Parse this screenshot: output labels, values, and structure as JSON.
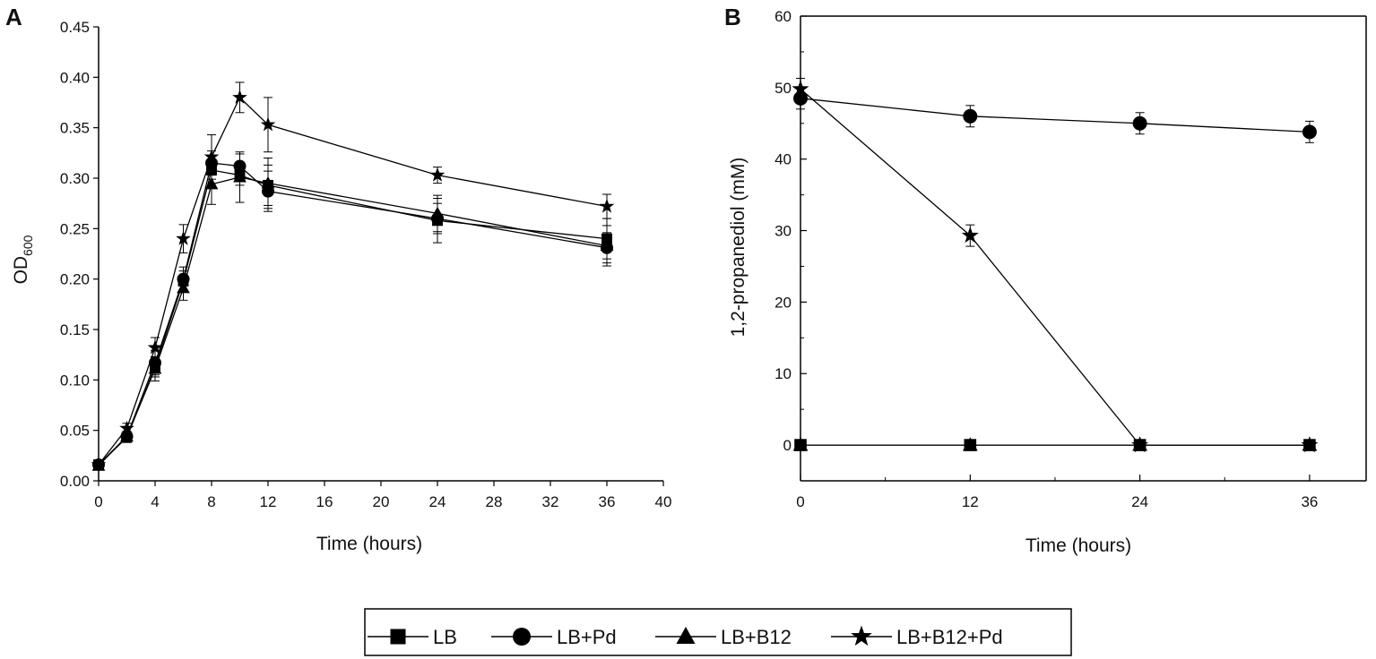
{
  "legend": [
    "LB",
    "LB+Pd",
    "LB+B12",
    "LB+B12+Pd"
  ],
  "chart_data": [
    {
      "panel": "A",
      "type": "line",
      "xlabel": "Time (hours)",
      "ylabel_main": "OD",
      "ylabel_sub": "600",
      "xlim": [
        0,
        40
      ],
      "ylim": [
        0,
        0.45
      ],
      "xticks": [
        "0",
        "4",
        "8",
        "12",
        "16",
        "20",
        "24",
        "28",
        "32",
        "36",
        "40"
      ],
      "yticks": [
        "0.00",
        "0.05",
        "0.10",
        "0.15",
        "0.20",
        "0.25",
        "0.30",
        "0.35",
        "0.40",
        "0.45"
      ],
      "series": [
        {
          "name": "LB",
          "marker": "square",
          "x": [
            0,
            2,
            4,
            6,
            8,
            10,
            12,
            24,
            36
          ],
          "y": [
            0.016,
            0.043,
            0.113,
            0.198,
            0.308,
            0.303,
            0.293,
            0.258,
            0.24
          ],
          "err": [
            0.004,
            0.005,
            0.01,
            0.01,
            0.015,
            0.01,
            0.02,
            0.022,
            0.02
          ]
        },
        {
          "name": "LB+Pd",
          "marker": "circle",
          "x": [
            0,
            2,
            4,
            6,
            8,
            10,
            12,
            24,
            36
          ],
          "y": [
            0.016,
            0.044,
            0.117,
            0.2,
            0.315,
            0.312,
            0.287,
            0.26,
            0.231
          ],
          "err": [
            0.004,
            0.005,
            0.012,
            0.012,
            0.012,
            0.012,
            0.02,
            0.015,
            0.015
          ]
        },
        {
          "name": "LB+B12",
          "marker": "triangle",
          "x": [
            0,
            2,
            4,
            6,
            8,
            10,
            12,
            24,
            36
          ],
          "y": [
            0.015,
            0.044,
            0.111,
            0.191,
            0.294,
            0.301,
            0.295,
            0.265,
            0.233
          ],
          "err": [
            0.004,
            0.005,
            0.012,
            0.012,
            0.02,
            0.025,
            0.025,
            0.018,
            0.02
          ]
        },
        {
          "name": "LB+B12+Pd",
          "marker": "star",
          "x": [
            0,
            2,
            4,
            6,
            8,
            10,
            12,
            24,
            36
          ],
          "y": [
            0.016,
            0.052,
            0.132,
            0.24,
            0.321,
            0.38,
            0.353,
            0.303,
            0.272
          ],
          "err": [
            0.004,
            0.005,
            0.01,
            0.014,
            0.022,
            0.015,
            0.027,
            0.008,
            0.012
          ]
        }
      ]
    },
    {
      "panel": "B",
      "type": "line",
      "xlabel": "Time (hours)",
      "ylabel": "1,2-propanediol (mM)",
      "xlim": [
        0,
        40
      ],
      "ylim": [
        -5,
        60
      ],
      "xticks": [
        "0",
        "12",
        "24",
        "36"
      ],
      "yticks": [
        "0",
        "10",
        "20",
        "30",
        "40",
        "50",
        "60"
      ],
      "series": [
        {
          "name": "LB",
          "marker": "square",
          "x": [
            0,
            12,
            24,
            36
          ],
          "y": [
            0,
            0,
            0,
            0
          ],
          "err": [
            0,
            0,
            0,
            0
          ]
        },
        {
          "name": "LB+Pd",
          "marker": "circle",
          "x": [
            0,
            12,
            24,
            36
          ],
          "y": [
            48.5,
            46.0,
            45.0,
            43.8
          ],
          "err": [
            1.5,
            1.5,
            1.5,
            1.5
          ]
        },
        {
          "name": "LB+B12",
          "marker": "triangle",
          "x": [
            0,
            12,
            24,
            36
          ],
          "y": [
            0,
            0,
            0,
            0
          ],
          "err": [
            0,
            0,
            0,
            0
          ]
        },
        {
          "name": "LB+B12+Pd",
          "marker": "star",
          "x": [
            0,
            12,
            24,
            36
          ],
          "y": [
            49.8,
            29.3,
            0,
            0
          ],
          "err": [
            1.5,
            1.5,
            0,
            0
          ]
        }
      ]
    }
  ]
}
